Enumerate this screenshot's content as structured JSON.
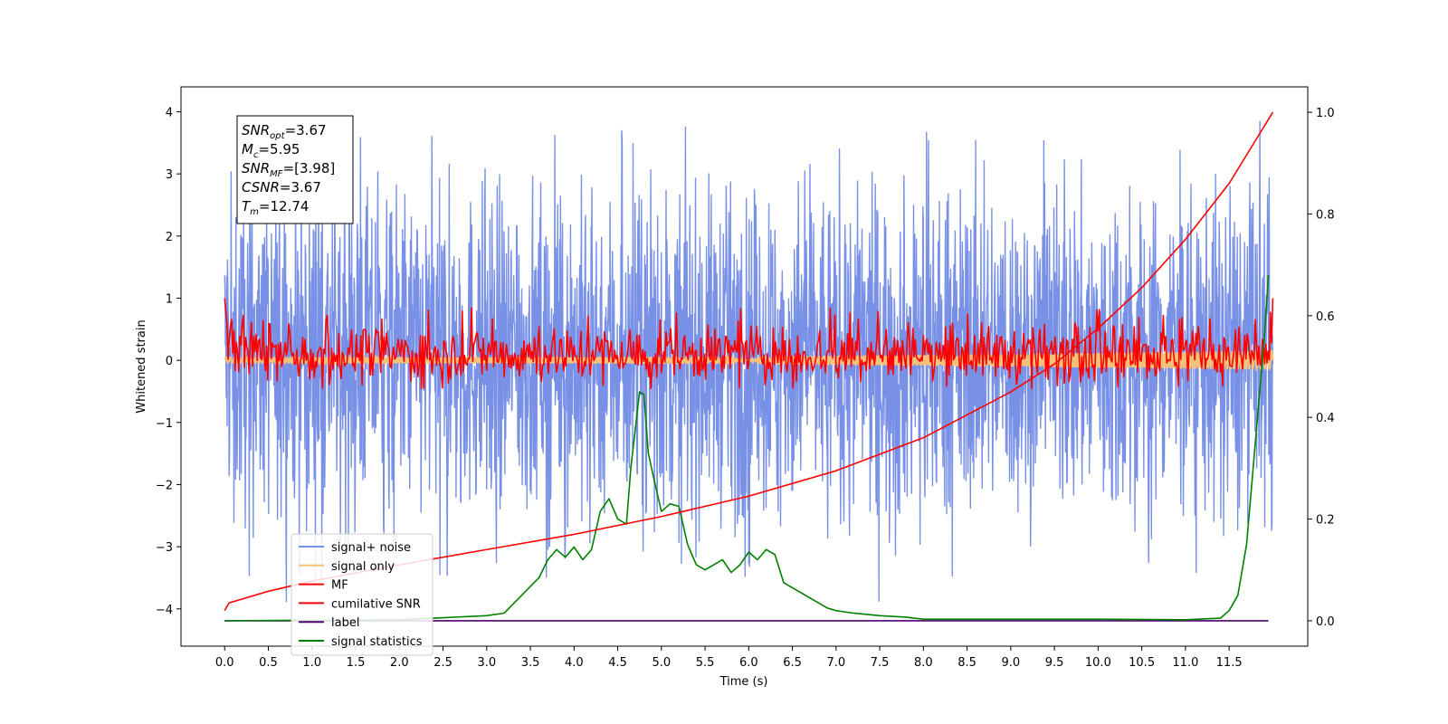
{
  "chart_data": {
    "type": "line",
    "title": "",
    "xlabel": "Time (s)",
    "ylabel": "Whitened strain",
    "ylabel_right": "",
    "xlim": [
      -0.5,
      12.4
    ],
    "ylim": [
      -4.6,
      4.4
    ],
    "ylim_right": [
      -0.05,
      1.05
    ],
    "x_ticks": [
      0.0,
      0.5,
      1.0,
      1.5,
      2.0,
      2.5,
      3.0,
      3.5,
      4.0,
      4.5,
      5.0,
      5.5,
      6.0,
      6.5,
      7.0,
      7.5,
      8.0,
      8.5,
      9.0,
      9.5,
      10.0,
      10.5,
      11.0,
      11.5
    ],
    "x_tick_labels": [
      "0.0",
      "0.5",
      "1.0",
      "1.5",
      "2.0",
      "2.5",
      "3.0",
      "3.5",
      "4.0",
      "4.5",
      "5.0",
      "5.5",
      "6.0",
      "6.5",
      "7.0",
      "7.5",
      "8.0",
      "8.5",
      "9.0",
      "9.5",
      "10.0",
      "10.5",
      "11.0",
      "11.5"
    ],
    "y_ticks": [
      -4,
      -3,
      -2,
      -1,
      0,
      1,
      2,
      3,
      4
    ],
    "y_tick_labels": [
      "−4",
      "−3",
      "−2",
      "−1",
      "0",
      "1",
      "2",
      "3",
      "4"
    ],
    "y_ticks_right": [
      0.0,
      0.2,
      0.4,
      0.6,
      0.8,
      1.0
    ],
    "y_tick_labels_right": [
      "0.0",
      "0.2",
      "0.4",
      "0.6",
      "0.8",
      "1.0"
    ],
    "grid": false,
    "legend_position": "lower-left",
    "info_box": {
      "position": "upper-left",
      "lines": [
        {
          "name": "SNR",
          "sub": "opt",
          "value": "=3.67"
        },
        {
          "name": "M",
          "sub": "c",
          "value": "=5.95"
        },
        {
          "name": "SNR",
          "sub": "MF",
          "value": "=[3.98]"
        },
        {
          "name": "CSNR",
          "sub": "",
          "value": "=3.67"
        },
        {
          "name": "T",
          "sub": "m",
          "value": "=12.74"
        }
      ]
    },
    "series": [
      {
        "name": "signal+ noise",
        "color": "#7891e6",
        "axis": "left",
        "description_of_shape": "dense noise band",
        "band": {
          "x_start": 0.0,
          "x_end": 12.0,
          "typical_low": -1.6,
          "typical_high": 1.8,
          "peak_low": -4.1,
          "peak_high": 4.0
        }
      },
      {
        "name": "signal only",
        "color": "#f5c27a",
        "axis": "left",
        "envelope": {
          "x_start": 0.0,
          "x_end": 12.0,
          "amp_start": 0.04,
          "amp_end": 0.15
        }
      },
      {
        "name": "MF",
        "color": "#ff0000",
        "axis": "left",
        "band": {
          "x_start": 0.0,
          "x_end": 12.0,
          "typical_low": -0.3,
          "typical_high": 0.5,
          "peak_high": 1.0,
          "peak_low": -0.45
        }
      },
      {
        "name": "cumilative SNR",
        "color": "#ff0000",
        "axis": "right",
        "x": [
          0.0,
          0.05,
          0.5,
          1.0,
          2.0,
          3.0,
          4.0,
          5.0,
          6.0,
          7.0,
          8.0,
          9.0,
          9.5,
          10.0,
          10.5,
          11.0,
          11.5,
          12.0
        ],
        "y": [
          0.02,
          0.035,
          0.058,
          0.078,
          0.11,
          0.14,
          0.17,
          0.205,
          0.245,
          0.295,
          0.36,
          0.45,
          0.505,
          0.575,
          0.655,
          0.75,
          0.86,
          1.0
        ]
      },
      {
        "name": "label",
        "color": "#4b006e",
        "axis": "right",
        "x": [
          0.0,
          11.95
        ],
        "y": [
          0.0,
          0.0
        ]
      },
      {
        "name": "signal statistics",
        "color": "#008000",
        "axis": "right",
        "x": [
          0.0,
          1.0,
          2.0,
          2.5,
          3.0,
          3.2,
          3.4,
          3.6,
          3.7,
          3.8,
          3.9,
          4.0,
          4.1,
          4.2,
          4.3,
          4.4,
          4.5,
          4.6,
          4.65,
          4.7,
          4.75,
          4.8,
          4.85,
          4.9,
          5.0,
          5.1,
          5.2,
          5.3,
          5.4,
          5.5,
          5.6,
          5.7,
          5.8,
          5.9,
          6.0,
          6.1,
          6.2,
          6.3,
          6.4,
          6.5,
          6.7,
          6.9,
          7.0,
          7.2,
          7.5,
          7.8,
          8.0,
          9.0,
          10.0,
          11.0,
          11.4,
          11.5,
          11.6,
          11.7,
          11.8,
          11.9,
          11.95
        ],
        "y": [
          0.0,
          0.001,
          0.002,
          0.006,
          0.01,
          0.015,
          0.05,
          0.085,
          0.12,
          0.14,
          0.125,
          0.145,
          0.12,
          0.14,
          0.215,
          0.24,
          0.2,
          0.19,
          0.3,
          0.375,
          0.45,
          0.445,
          0.33,
          0.29,
          0.215,
          0.23,
          0.225,
          0.15,
          0.11,
          0.1,
          0.11,
          0.12,
          0.095,
          0.11,
          0.135,
          0.12,
          0.14,
          0.13,
          0.075,
          0.065,
          0.045,
          0.025,
          0.02,
          0.015,
          0.01,
          0.007,
          0.003,
          0.003,
          0.003,
          0.002,
          0.005,
          0.02,
          0.05,
          0.15,
          0.35,
          0.55,
          0.68
        ]
      }
    ]
  }
}
